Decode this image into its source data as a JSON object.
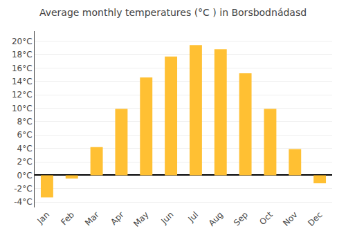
{
  "chart_data": {
    "type": "bar",
    "title": "Average monthly temperatures (°C ) in Borsbodnádasd",
    "categories": [
      "Jan",
      "Feb",
      "Mar",
      "Apr",
      "May",
      "Jun",
      "Jul",
      "Aug",
      "Sep",
      "Oct",
      "Nov",
      "Dec"
    ],
    "values": [
      -3.3,
      -0.5,
      4.2,
      9.9,
      14.6,
      17.7,
      19.4,
      18.8,
      15.2,
      9.9,
      3.9,
      -1.2
    ],
    "color": "#FFC033",
    "ylim": [
      -4.8,
      21.5
    ],
    "yticks": [
      {
        "value": -4,
        "label": "-4°C"
      },
      {
        "value": -2,
        "label": "-2°C"
      },
      {
        "value": 0,
        "label": "0°C"
      },
      {
        "value": 2,
        "label": "2°C"
      },
      {
        "value": 4,
        "label": "4°C"
      },
      {
        "value": 6,
        "label": "6°C"
      },
      {
        "value": 8,
        "label": "8°C"
      },
      {
        "value": 10,
        "label": "10°C"
      },
      {
        "value": 12,
        "label": "12°C"
      },
      {
        "value": 14,
        "label": "14°C"
      },
      {
        "value": 16,
        "label": "16°C"
      },
      {
        "value": 18,
        "label": "18°C"
      },
      {
        "value": 20,
        "label": "20°C"
      }
    ],
    "grid": true
  }
}
